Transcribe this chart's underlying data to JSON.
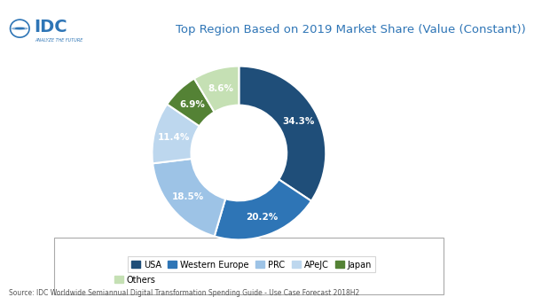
{
  "title": "Top Region Based on 2019 Market Share (Value (Constant))",
  "labels": [
    "USA",
    "Western Europe",
    "PRC",
    "APeJC",
    "Japan",
    "Others"
  ],
  "values": [
    34.3,
    20.2,
    18.5,
    11.4,
    6.9,
    8.6
  ],
  "colors": [
    "#1f4e79",
    "#2e75b6",
    "#9dc3e6",
    "#bdd7ee",
    "#548235",
    "#c5e0b4"
  ],
  "pct_labels": [
    "34.3%",
    "20.2%",
    "18.5%",
    "11.4%",
    "6.9%",
    "8.6%"
  ],
  "source": "Source: IDC Worldwide Semiannual Digital Transformation Spending Guide - Use Case Forecast 2018H2",
  "idc_logo_text": "IDC",
  "idc_sub_text": "ANALYZE THE FUTURE",
  "legend_labels": [
    "USA",
    "Western Europe",
    "PRC",
    "APeJC",
    "Japan",
    "Others"
  ],
  "wedge_label_colors": [
    "white",
    "white",
    "white",
    "white",
    "white",
    "white"
  ]
}
